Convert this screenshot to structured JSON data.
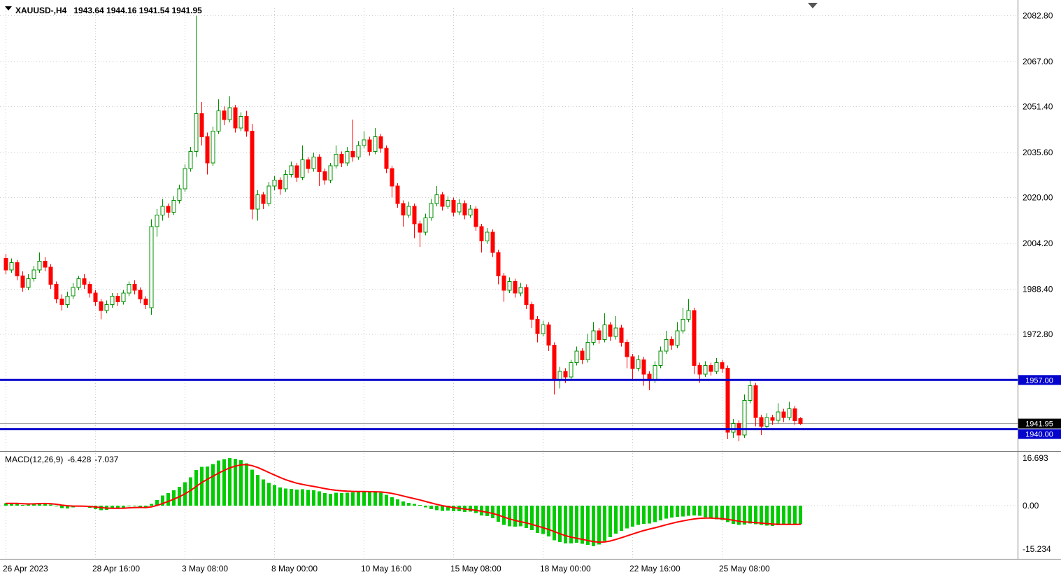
{
  "window": {
    "symbol_timeframe": "XAUUSD-,H4",
    "ohlc_line": "1943.64 1944.16 1941.54 1941.95"
  },
  "colors": {
    "bull_stroke": "#009000",
    "bull_fill": "#ffffff",
    "bear": "#ff0000",
    "grid": "#c8c8c8",
    "level_line": "#0404cc",
    "histogram": "#00cc00",
    "signal": "#ff0000",
    "axis_text": "#000000",
    "tag_current_bg": "#000000",
    "tag_level_bg": "#0404cc",
    "separator": "#7f7f7f",
    "bid_line": "#999999"
  },
  "chart_data": [
    {
      "type": "candlestick",
      "symbol": "XAUUSD-",
      "timeframe": "H4",
      "y_ticks": [
        "2082.80",
        "2067.00",
        "2051.40",
        "2035.60",
        "2020.00",
        "2004.20",
        "1988.40",
        "1972.80"
      ],
      "x_tick_labels": [
        "26 Apr 2023",
        "28 Apr 16:00",
        "3 May 08:00",
        "8 May 00:00",
        "10 May 16:00",
        "15 May 08:00",
        "18 May 00:00",
        "22 May 16:00",
        "25 May 08:00"
      ],
      "x_tick_indices": [
        0,
        16,
        32,
        48,
        64,
        80,
        96,
        112,
        128
      ],
      "ylim": [
        1933,
        2086
      ],
      "grid": true,
      "levels": [
        {
          "price": 1957.0,
          "label": "1957.00"
        },
        {
          "price": 1940.0,
          "label": "1940.00"
        }
      ],
      "current_price": {
        "price": 1941.95,
        "label": "1941.95"
      },
      "ohlc": [
        [
          1999,
          2000.5,
          1993.5,
          1995
        ],
        [
          1995,
          1999,
          1994,
          1997.5
        ],
        [
          1997.5,
          1998.5,
          1991.5,
          1993
        ],
        [
          1993,
          1994.5,
          1987.5,
          1989
        ],
        [
          1989,
          1993.5,
          1988,
          1992
        ],
        [
          1992,
          1996.5,
          1991,
          1995
        ],
        [
          1995,
          2001,
          1994,
          1998
        ],
        [
          1998,
          1999.5,
          1994.5,
          1996
        ],
        [
          1996,
          1997,
          1988.5,
          1990
        ],
        [
          1990,
          1991,
          1983.5,
          1985
        ],
        [
          1985,
          1986.5,
          1981,
          1983
        ],
        [
          1983,
          1987.5,
          1982,
          1986
        ],
        [
          1986,
          1990.5,
          1985,
          1989
        ],
        [
          1989,
          1993,
          1988,
          1992
        ],
        [
          1992,
          1993.5,
          1988.5,
          1990
        ],
        [
          1990,
          1991,
          1985.5,
          1987
        ],
        [
          1987,
          1988,
          1982.5,
          1984
        ],
        [
          1984,
          1985,
          1978,
          1981
        ],
        [
          1981,
          1984.5,
          1980,
          1983
        ],
        [
          1983,
          1987,
          1982,
          1986
        ],
        [
          1986,
          1987,
          1982.5,
          1984
        ],
        [
          1984,
          1988,
          1983,
          1987
        ],
        [
          1987,
          1991,
          1986,
          1990
        ],
        [
          1990,
          1991.5,
          1986.5,
          1988
        ],
        [
          1988,
          1989,
          1983.5,
          1985
        ],
        [
          1985,
          1986,
          1981.5,
          1983
        ],
        [
          1982,
          2012.5,
          1979.5,
          2010
        ],
        [
          2010,
          2016,
          2006.5,
          2014
        ],
        [
          2014,
          2019.5,
          2012,
          2017
        ],
        [
          2017,
          2018,
          2013,
          2015
        ],
        [
          2015,
          2020.5,
          2014,
          2019
        ],
        [
          2019,
          2024.5,
          2018,
          2023
        ],
        [
          2023,
          2031.5,
          2022,
          2030
        ],
        [
          2030,
          2037.5,
          2029,
          2036
        ],
        [
          2036,
          2082.8,
          2034,
          2049
        ],
        [
          2049,
          2053,
          2038,
          2041
        ],
        [
          2041,
          2042.5,
          2028,
          2032
        ],
        [
          2032,
          2044.5,
          2031,
          2043
        ],
        [
          2043,
          2054,
          2042,
          2050
        ],
        [
          2050,
          2051.5,
          2045,
          2047
        ],
        [
          2047,
          2055,
          2046,
          2051
        ],
        [
          2051,
          2052,
          2042.5,
          2044
        ],
        [
          2044,
          2049.5,
          2043,
          2048
        ],
        [
          2048,
          2050,
          2041,
          2043
        ],
        [
          2043,
          2045.5,
          2012.5,
          2016
        ],
        [
          2016,
          2022.5,
          2012,
          2021
        ],
        [
          2021,
          2022,
          2016,
          2018
        ],
        [
          2018,
          2025.5,
          2017,
          2024
        ],
        [
          2024,
          2027.5,
          2022.5,
          2026
        ],
        [
          2026,
          2027,
          2021,
          2023
        ],
        [
          2023,
          2029.5,
          2022,
          2028
        ],
        [
          2028,
          2032.5,
          2027,
          2031
        ],
        [
          2031,
          2032,
          2025.5,
          2027
        ],
        [
          2027,
          2038,
          2026,
          2033
        ],
        [
          2033,
          2034,
          2028.5,
          2030
        ],
        [
          2030,
          2035.5,
          2029,
          2034
        ],
        [
          2034,
          2035,
          2024,
          2029
        ],
        [
          2029,
          2030,
          2024.5,
          2026
        ],
        [
          2026,
          2032,
          2025,
          2031
        ],
        [
          2031,
          2038,
          2030,
          2035
        ],
        [
          2035,
          2036,
          2030.5,
          2032
        ],
        [
          2032,
          2037.5,
          2031,
          2036
        ],
        [
          2036,
          2047,
          2032.5,
          2034
        ],
        [
          2034,
          2039.5,
          2033,
          2038
        ],
        [
          2038,
          2043,
          2037,
          2040
        ],
        [
          2040,
          2041,
          2034.5,
          2036
        ],
        [
          2036,
          2044,
          2035,
          2041
        ],
        [
          2041,
          2042,
          2035.5,
          2037
        ],
        [
          2037,
          2038,
          2028.5,
          2030
        ],
        [
          2030,
          2031,
          2020,
          2024
        ],
        [
          2024,
          2025,
          2016.5,
          2018
        ],
        [
          2018,
          2019,
          2010,
          2014
        ],
        [
          2014,
          2018.5,
          2013,
          2017
        ],
        [
          2017,
          2018,
          2006,
          2011
        ],
        [
          2011,
          2012,
          2003,
          2008
        ],
        [
          2008,
          2014.5,
          2007,
          2013
        ],
        [
          2013,
          2019.5,
          2012,
          2018
        ],
        [
          2018,
          2024,
          2017,
          2021
        ],
        [
          2021,
          2022,
          2015.5,
          2017
        ],
        [
          2017,
          2020.5,
          2016,
          2019
        ],
        [
          2019,
          2020,
          2013.5,
          2015
        ],
        [
          2015,
          2019.5,
          2014,
          2018
        ],
        [
          2018,
          2019,
          2012.5,
          2014
        ],
        [
          2014,
          2017.5,
          2013,
          2016
        ],
        [
          2016,
          2017,
          2008.5,
          2010
        ],
        [
          2010,
          2011,
          2001,
          2005
        ],
        [
          2005,
          2009.5,
          2004,
          2008
        ],
        [
          2008,
          2009,
          1999.5,
          2001
        ],
        [
          2001,
          2002,
          1990,
          1993
        ],
        [
          1993,
          1994,
          1984,
          1988
        ],
        [
          1988,
          1992.5,
          1987,
          1991
        ],
        [
          1991,
          1992,
          1985.5,
          1987
        ],
        [
          1987,
          1990.5,
          1986,
          1989
        ],
        [
          1989,
          1990,
          1981.5,
          1983
        ],
        [
          1983,
          1984,
          1975,
          1978
        ],
        [
          1978,
          1979,
          1970,
          1973
        ],
        [
          1973,
          1977.5,
          1972,
          1976
        ],
        [
          1976,
          1977,
          1967,
          1969
        ],
        [
          1969,
          1970,
          1952,
          1957
        ],
        [
          1957,
          1961.5,
          1954,
          1960
        ],
        [
          1960,
          1961,
          1956,
          1958
        ],
        [
          1958,
          1964,
          1957,
          1963
        ],
        [
          1963,
          1968.5,
          1962,
          1967
        ],
        [
          1967,
          1968,
          1962.5,
          1964
        ],
        [
          1964,
          1973,
          1963,
          1970
        ],
        [
          1970,
          1977,
          1969,
          1974
        ],
        [
          1974,
          1975,
          1969.5,
          1971
        ],
        [
          1971,
          1980,
          1970,
          1976
        ],
        [
          1976,
          1977,
          1970.5,
          1972
        ],
        [
          1972,
          1979,
          1971,
          1975
        ],
        [
          1975,
          1976,
          1968.5,
          1970
        ],
        [
          1970,
          1971,
          1961,
          1965
        ],
        [
          1965,
          1966,
          1957,
          1961
        ],
        [
          1961,
          1965.5,
          1960,
          1964
        ],
        [
          1964,
          1965,
          1955,
          1959
        ],
        [
          1959,
          1960,
          1953.5,
          1957
        ],
        [
          1957,
          1963.5,
          1956,
          1962
        ],
        [
          1962,
          1968.5,
          1961,
          1967
        ],
        [
          1967,
          1974,
          1966,
          1971
        ],
        [
          1971,
          1972,
          1967.5,
          1969
        ],
        [
          1969,
          1977,
          1968,
          1974
        ],
        [
          1974,
          1982,
          1973,
          1978
        ],
        [
          1978,
          1985,
          1977,
          1981
        ],
        [
          1981,
          1982,
          1959,
          1962
        ],
        [
          1962,
          1963,
          1956,
          1959
        ],
        [
          1959,
          1963.5,
          1958,
          1962
        ],
        [
          1962,
          1963,
          1958.5,
          1960
        ],
        [
          1960,
          1964.5,
          1959,
          1963
        ],
        [
          1963,
          1964,
          1959.5,
          1961
        ],
        [
          1961,
          1962,
          1936.5,
          1939
        ],
        [
          1939,
          1943.5,
          1937,
          1942
        ],
        [
          1942,
          1943,
          1935.8,
          1938
        ],
        [
          1938,
          1952,
          1937,
          1950
        ],
        [
          1950,
          1957,
          1949,
          1955
        ],
        [
          1955,
          1956,
          1941,
          1944
        ],
        [
          1944,
          1945,
          1938,
          1941
        ],
        [
          1941,
          1945.5,
          1940,
          1944
        ],
        [
          1944,
          1945,
          1941.5,
          1943
        ],
        [
          1943,
          1949,
          1942,
          1946
        ],
        [
          1946,
          1947,
          1942.5,
          1944
        ],
        [
          1944,
          1949.5,
          1943,
          1947
        ],
        [
          1947,
          1948,
          1941.5,
          1943
        ],
        [
          1943.64,
          1944.16,
          1941.54,
          1941.95
        ]
      ]
    },
    {
      "type": "bar",
      "name": "MACD histogram",
      "label": "MACD(12,26,9)",
      "value_main": "-6.428",
      "value_signal": "-7.037",
      "y_ticks": [
        "16.693",
        "0.00",
        "-15.234"
      ],
      "y_tick_values": [
        16.693,
        0,
        -15.234
      ],
      "ylim": [
        -15.234,
        16.693
      ],
      "values": [
        0.8,
        0.9,
        0.6,
        0.3,
        0.4,
        0.7,
        1.0,
        0.9,
        0.4,
        -0.3,
        -0.9,
        -1.0,
        -0.6,
        -0.2,
        -0.3,
        -0.7,
        -1.2,
        -1.6,
        -1.5,
        -1.1,
        -1.0,
        -0.7,
        -0.3,
        -0.2,
        -0.5,
        -0.9,
        0.6,
        2.0,
        3.6,
        4.4,
        5.4,
        6.6,
        8.2,
        10.0,
        12.5,
        13.6,
        13.8,
        14.6,
        15.8,
        16.3,
        16.7,
        16.4,
        16.0,
        14.8,
        12.6,
        10.8,
        9.2,
        8.0,
        7.2,
        6.4,
        6.0,
        5.9,
        5.6,
        5.8,
        5.5,
        5.4,
        5.0,
        4.4,
        4.2,
        4.5,
        4.4,
        4.6,
        4.7,
        4.8,
        5.0,
        4.7,
        4.8,
        4.5,
        3.8,
        3.0,
        2.2,
        1.5,
        1.0,
        0.6,
        0.2,
        -0.6,
        -1.2,
        -1.6,
        -1.8,
        -1.7,
        -2.0,
        -2.0,
        -2.2,
        -2.1,
        -2.6,
        -3.4,
        -3.7,
        -4.4,
        -5.6,
        -6.8,
        -7.2,
        -7.4,
        -7.3,
        -7.8,
        -8.6,
        -9.6,
        -10.0,
        -10.8,
        -12.2,
        -12.8,
        -13.2,
        -13.2,
        -13.0,
        -13.4,
        -13.8,
        -14.2,
        -13.6,
        -12.4,
        -11.0,
        -9.8,
        -8.8,
        -8.0,
        -7.4,
        -6.8,
        -6.4,
        -6.2,
        -5.8,
        -5.2,
        -4.6,
        -4.2,
        -3.9,
        -3.8,
        -3.5,
        -3.4,
        -3.6,
        -4.0,
        -4.4,
        -4.8,
        -5.0,
        -5.8,
        -6.4,
        -6.8,
        -6.6,
        -6.2,
        -6.5,
        -6.8,
        -7.0,
        -7.1,
        -6.9,
        -6.7,
        -6.6,
        -6.5,
        -6.428
      ]
    }
  ]
}
